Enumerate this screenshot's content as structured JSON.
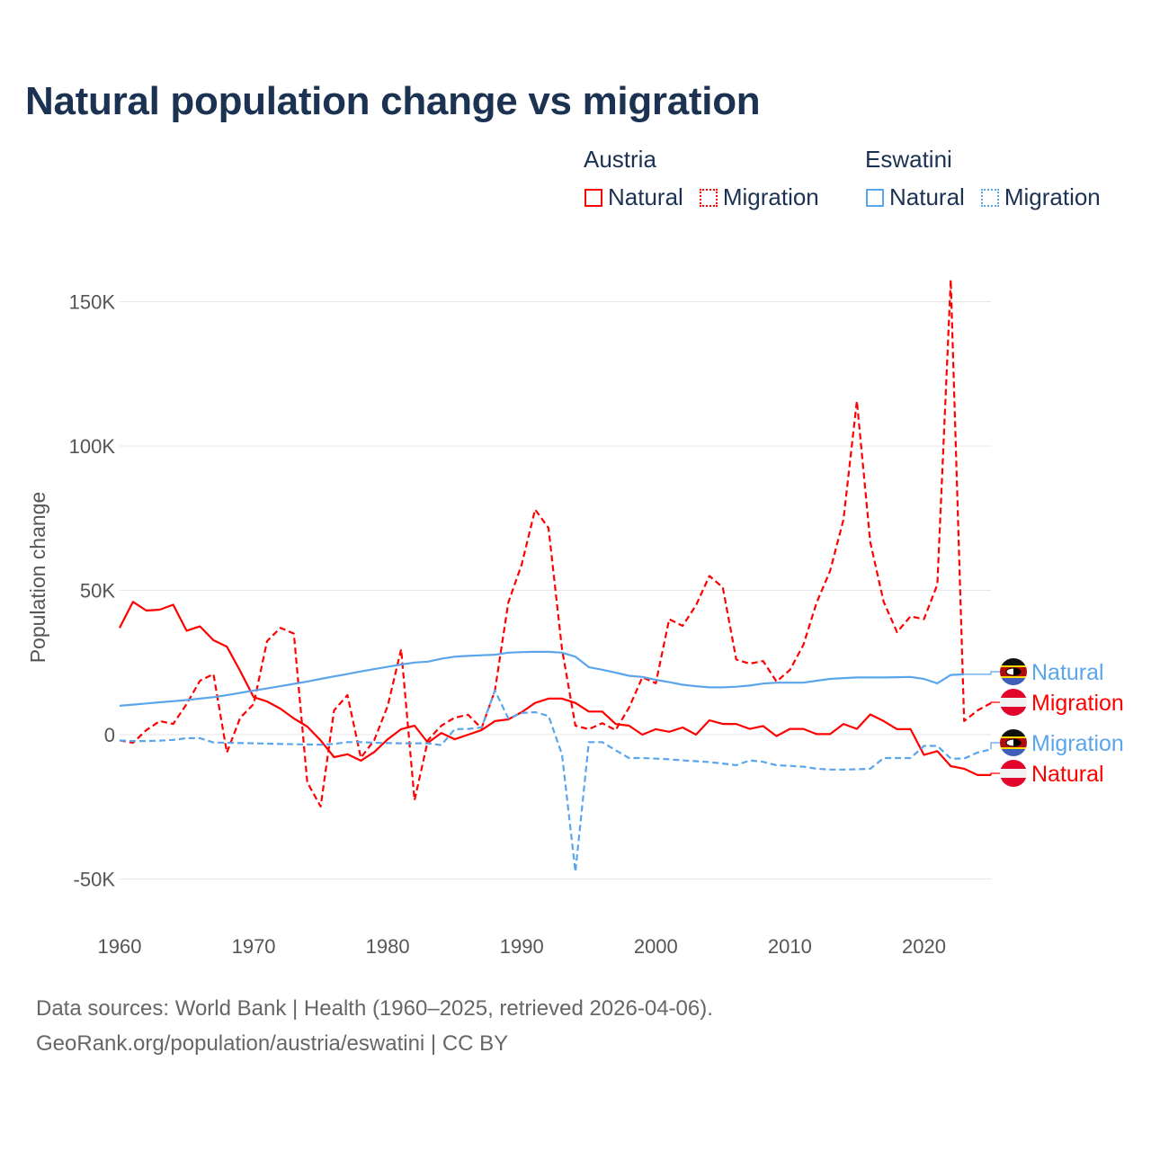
{
  "chart_data": {
    "type": "line",
    "title": "Natural population change vs migration",
    "xlabel": "",
    "ylabel": "Population change",
    "xlim": [
      1960,
      2025
    ],
    "ylim": [
      -55,
      160
    ],
    "y_unit": "thousands",
    "x_ticks": [
      "1960",
      "1970",
      "1980",
      "1990",
      "2000",
      "2010",
      "2020"
    ],
    "x_tick_values": [
      1960,
      1970,
      1980,
      1990,
      2000,
      2010,
      2020
    ],
    "y_ticks": [
      "-50K",
      "0",
      "50K",
      "100K",
      "150K"
    ],
    "y_tick_values": [
      -50,
      0,
      50,
      100,
      150
    ],
    "grid": "horizontal",
    "legend_placement": "top-right",
    "legend_groups": [
      {
        "country": "Austria",
        "items": [
          "Natural",
          "Migration"
        ]
      },
      {
        "country": "Eswatini",
        "items": [
          "Natural",
          "Migration"
        ]
      }
    ],
    "series": [
      {
        "name": "Austria Natural",
        "country": "Austria",
        "kind": "Natural",
        "label": "Natural",
        "color": "#ff0000",
        "dash": false,
        "start_year": 1960,
        "values": [
          37,
          46,
          43,
          43.3,
          45,
          36,
          37.5,
          32.7,
          30.5,
          22,
          13,
          11.5,
          9,
          5.6,
          2.8,
          -2,
          -7.8,
          -6.8,
          -9,
          -6,
          -1.6,
          1.9,
          3.1,
          -2.8,
          0.6,
          -1.6,
          0,
          1.6,
          4.7,
          5.3,
          7.8,
          11,
          12.5,
          12.5,
          11,
          8,
          8,
          3.7,
          3.1,
          0,
          1.9,
          1,
          2.5,
          0,
          5,
          3.7,
          3.7,
          2,
          3,
          -0.5,
          2,
          2,
          0.2,
          0.2,
          3.7,
          2,
          7,
          4.7,
          1.9,
          1.9,
          -7,
          -5.7,
          -10.9,
          -11.8,
          -14,
          -14
        ]
      },
      {
        "name": "Austria Migration",
        "country": "Austria",
        "kind": "Migration",
        "label": "Migration",
        "color": "#ff0000",
        "dash": true,
        "start_year": 1960,
        "values": [
          -2,
          -2.8,
          1.6,
          4.7,
          3.7,
          10.6,
          18.7,
          21,
          -6.2,
          5.9,
          10.6,
          32.4,
          37,
          35,
          -16.5,
          -24.9,
          8.4,
          13.7,
          -8,
          -1.9,
          10,
          29.6,
          -22.7,
          -1.9,
          3.1,
          5.9,
          6.9,
          2.2,
          15.3,
          45.8,
          59,
          78,
          71.6,
          29.6,
          3.1,
          1.9,
          4,
          1.6,
          9.3,
          19.9,
          17.8,
          40,
          37.7,
          44.8,
          55,
          51,
          26,
          24.6,
          25.5,
          18.4,
          22.4,
          31,
          45.8,
          56.7,
          74.5,
          115.6,
          66.7,
          46,
          35.5,
          41,
          40,
          52,
          157.6,
          4.7,
          8.4,
          10.9
        ]
      },
      {
        "name": "Eswatini Natural",
        "country": "Eswatini",
        "kind": "Natural",
        "label": "Natural",
        "color": "#5aa5ec",
        "dash": false,
        "start_year": 1960,
        "values": [
          10,
          10.4,
          10.8,
          11.2,
          11.6,
          12,
          12.5,
          13,
          13.7,
          14.5,
          15.3,
          16,
          16.8,
          17.6,
          18.4,
          19.3,
          20.2,
          21,
          21.9,
          22.7,
          23.5,
          24.3,
          25,
          25.3,
          26.3,
          27,
          27.3,
          27.5,
          27.7,
          28.4,
          28.6,
          28.7,
          28.7,
          28.4,
          27,
          23.4,
          22.5,
          21.5,
          20.4,
          20,
          19,
          18.2,
          17.3,
          16.8,
          16.4,
          16.4,
          16.6,
          17,
          17.7,
          18,
          18,
          18,
          18.7,
          19.3,
          19.6,
          19.8,
          19.8,
          19.8,
          19.9,
          20,
          19.3,
          17.8,
          20.7,
          20.9
        ]
      },
      {
        "name": "Eswatini Migration",
        "country": "Eswatini",
        "kind": "Migration",
        "label": "Migration",
        "color": "#5aa5ec",
        "dash": true,
        "start_year": 1960,
        "values": [
          -2,
          -2.2,
          -2.2,
          -2.1,
          -1.8,
          -1.2,
          -1.2,
          -2.7,
          -2.8,
          -2.9,
          -3,
          -3.1,
          -3.2,
          -3.3,
          -3.4,
          -3.5,
          -3.2,
          -2.6,
          -2.6,
          -2.8,
          -2.9,
          -3,
          -3,
          -3,
          -3.6,
          1.9,
          2,
          2.5,
          15.3,
          5.6,
          7.5,
          7.8,
          6.5,
          -6.9,
          -47.5,
          -2.6,
          -2.6,
          -5.4,
          -8.1,
          -8.1,
          -8.3,
          -8.5,
          -8.9,
          -9.2,
          -9.5,
          -10,
          -10.6,
          -8.9,
          -9.4,
          -10.6,
          -10.8,
          -11.1,
          -11.8,
          -12.1,
          -12.1,
          -12,
          -11.8,
          -8.1,
          -8.1,
          -8.1,
          -3.9,
          -3.9,
          -8.3,
          -8.3,
          -6.2,
          -5.1
        ]
      }
    ],
    "end_label_order": [
      "Eswatini Natural",
      "Austria Migration",
      "Eswatini Migration",
      "Austria Natural"
    ]
  },
  "legend": {
    "austria": "Austria",
    "eswatini": "Eswatini",
    "natural": "Natural",
    "migration": "Migration"
  },
  "colors": {
    "austria": "#ff0000",
    "eswatini": "#5aa5ec",
    "title": "#1b3252"
  },
  "footer": {
    "sources": "Data sources: World Bank | Health (1960–2025, retrieved 2026-04-06).",
    "credit": "GeoRank.org/population/austria/eswatini | CC BY"
  }
}
